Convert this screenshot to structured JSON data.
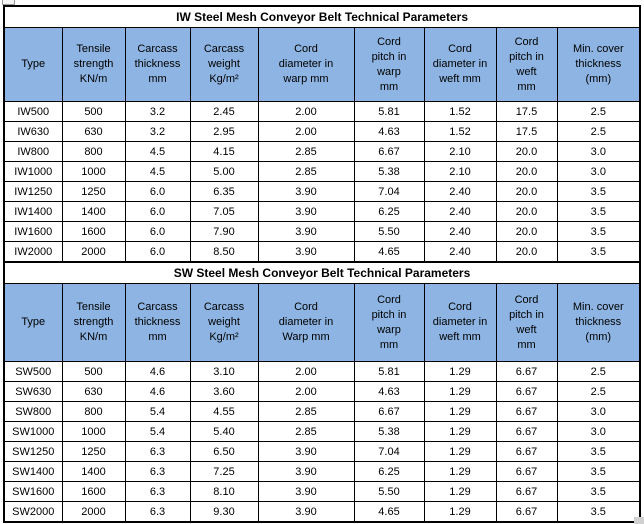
{
  "page": {
    "background": "#ffffff"
  },
  "theme": {
    "header_fill": "#8db4e2",
    "border_color": "#000000",
    "text_color": "#000000",
    "title_background": "#ffffff"
  },
  "tables": [
    {
      "id": "iw",
      "title": "IW Steel Mesh Conveyor Belt Technical Parameters",
      "headers": [
        "Type",
        "Tensile\nstrength\nKN/m",
        "Carcass\nthickness\nmm",
        "Carcass\nweight\nKg/m²",
        "Cord\ndiameter in\nwarp mm",
        "Cord\npitch in\nwarp\nmm",
        "Cord\ndiameter in\nweft mm",
        "Cord\npitch in\nweft\nmm",
        "Min. cover\nthickness\n(mm)"
      ],
      "rows": [
        [
          "IW500",
          "500",
          "3.2",
          "2.45",
          "2.00",
          "5.81",
          "1.52",
          "17.5",
          "2.5"
        ],
        [
          "IW630",
          "630",
          "3.2",
          "2.95",
          "2.00",
          "4.63",
          "1.52",
          "17.5",
          "2.5"
        ],
        [
          "IW800",
          "800",
          "4.5",
          "4.15",
          "2.85",
          "6.67",
          "2.10",
          "20.0",
          "3.0"
        ],
        [
          "IW1000",
          "1000",
          "4.5",
          "5.00",
          "2.85",
          "5.38",
          "2.10",
          "20.0",
          "3.0"
        ],
        [
          "IW1250",
          "1250",
          "6.0",
          "6.35",
          "3.90",
          "7.04",
          "2.40",
          "20.0",
          "3.5"
        ],
        [
          "IW1400",
          "1400",
          "6.0",
          "7.05",
          "3.90",
          "6.25",
          "2.40",
          "20.0",
          "3.5"
        ],
        [
          "IW1600",
          "1600",
          "6.0",
          "7.90",
          "3.90",
          "5.50",
          "2.40",
          "20.0",
          "3.5"
        ],
        [
          "IW2000",
          "2000",
          "6.0",
          "8.50",
          "3.90",
          "4.65",
          "2.40",
          "20.0",
          "3.5"
        ]
      ]
    },
    {
      "id": "sw",
      "title": "SW Steel Mesh Conveyor Belt Technical Parameters",
      "headers": [
        "Type",
        "Tensile\nstrength\nKN/m",
        "Carcass\nthickness\nmm",
        "Carcass\nweight\nKg/m²",
        "Cord\ndiameter in\nWarp mm",
        "Cord\npitch in\nwarp\nmm",
        "Cord\ndiameter in\nweft mm",
        "Cord\npitch in\nweft\nmm",
        "Min. cover\nthickness\n(mm)"
      ],
      "rows": [
        [
          "SW500",
          "500",
          "4.6",
          "3.10",
          "2.00",
          "5.81",
          "1.29",
          "6.67",
          "2.5"
        ],
        [
          "SW630",
          "630",
          "4.6",
          "3.60",
          "2.00",
          "4.63",
          "1.29",
          "6.67",
          "2.5"
        ],
        [
          "SW800",
          "800",
          "5.4",
          "4.55",
          "2.85",
          "6.67",
          "1.29",
          "6.67",
          "3.0"
        ],
        [
          "SW1000",
          "1000",
          "5.4",
          "5.40",
          "2.85",
          "5.38",
          "1.29",
          "6.67",
          "3.0"
        ],
        [
          "SW1250",
          "1250",
          "6.3",
          "6.50",
          "3.90",
          "7.04",
          "1.29",
          "6.67",
          "3.5"
        ],
        [
          "SW1400",
          "1400",
          "6.3",
          "7.25",
          "3.90",
          "6.25",
          "1.29",
          "6.67",
          "3.5"
        ],
        [
          "SW1600",
          "1600",
          "6.3",
          "8.10",
          "3.90",
          "5.50",
          "1.29",
          "6.67",
          "3.5"
        ],
        [
          "SW2000",
          "2000",
          "6.3",
          "9.30",
          "3.90",
          "4.65",
          "1.29",
          "6.67",
          "3.5"
        ]
      ]
    }
  ],
  "chart_data": [
    {
      "type": "table",
      "title": "IW Steel Mesh Conveyor Belt Technical Parameters",
      "columns": [
        "Type",
        "Tensile strength KN/m",
        "Carcass thickness mm",
        "Carcass weight Kg/m²",
        "Cord diameter in warp mm",
        "Cord pitch in warp mm",
        "Cord diameter in weft mm",
        "Cord pitch in weft mm",
        "Min. cover thickness (mm)"
      ],
      "rows": [
        [
          "IW500",
          "500",
          "3.2",
          "2.45",
          "2.00",
          "5.81",
          "1.52",
          "17.5",
          "2.5"
        ],
        [
          "IW630",
          "630",
          "3.2",
          "2.95",
          "2.00",
          "4.63",
          "1.52",
          "17.5",
          "2.5"
        ],
        [
          "IW800",
          "800",
          "4.5",
          "4.15",
          "2.85",
          "6.67",
          "2.10",
          "20.0",
          "3.0"
        ],
        [
          "IW1000",
          "1000",
          "4.5",
          "5.00",
          "2.85",
          "5.38",
          "2.10",
          "20.0",
          "3.0"
        ],
        [
          "IW1250",
          "1250",
          "6.0",
          "6.35",
          "3.90",
          "7.04",
          "2.40",
          "20.0",
          "3.5"
        ],
        [
          "IW1400",
          "1400",
          "6.0",
          "7.05",
          "3.90",
          "6.25",
          "2.40",
          "20.0",
          "3.5"
        ],
        [
          "IW1600",
          "1600",
          "6.0",
          "7.90",
          "3.90",
          "5.50",
          "2.40",
          "20.0",
          "3.5"
        ],
        [
          "IW2000",
          "2000",
          "6.0",
          "8.50",
          "3.90",
          "4.65",
          "2.40",
          "20.0",
          "3.5"
        ]
      ]
    },
    {
      "type": "table",
      "title": "SW Steel Mesh Conveyor Belt Technical Parameters",
      "columns": [
        "Type",
        "Tensile strength KN/m",
        "Carcass thickness mm",
        "Carcass weight Kg/m²",
        "Cord diameter in Warp mm",
        "Cord pitch in warp mm",
        "Cord diameter in weft mm",
        "Cord pitch in weft mm",
        "Min. cover thickness (mm)"
      ],
      "rows": [
        [
          "SW500",
          "500",
          "4.6",
          "3.10",
          "2.00",
          "5.81",
          "1.29",
          "6.67",
          "2.5"
        ],
        [
          "SW630",
          "630",
          "4.6",
          "3.60",
          "2.00",
          "4.63",
          "1.29",
          "6.67",
          "2.5"
        ],
        [
          "SW800",
          "800",
          "5.4",
          "4.55",
          "2.85",
          "6.67",
          "1.29",
          "6.67",
          "3.0"
        ],
        [
          "SW1000",
          "1000",
          "5.4",
          "5.40",
          "2.85",
          "5.38",
          "1.29",
          "6.67",
          "3.0"
        ],
        [
          "SW1250",
          "1250",
          "6.3",
          "6.50",
          "3.90",
          "7.04",
          "1.29",
          "6.67",
          "3.5"
        ],
        [
          "SW1400",
          "1400",
          "6.3",
          "7.25",
          "3.90",
          "6.25",
          "1.29",
          "6.67",
          "3.5"
        ],
        [
          "SW1600",
          "1600",
          "6.3",
          "8.10",
          "3.90",
          "5.50",
          "1.29",
          "6.67",
          "3.5"
        ],
        [
          "SW2000",
          "2000",
          "6.3",
          "9.30",
          "3.90",
          "4.65",
          "1.29",
          "6.67",
          "3.5"
        ]
      ]
    }
  ]
}
